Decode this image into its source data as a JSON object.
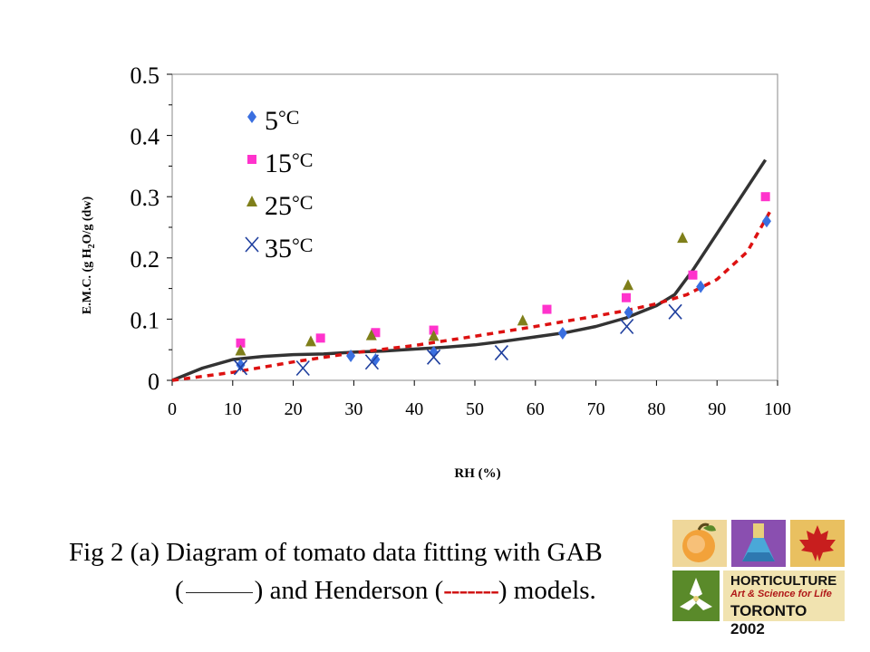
{
  "chart_data": {
    "type": "scatter",
    "title": "",
    "xlabel": "RH (%)",
    "ylabel": "E.M.C. (g H2O/g (dw)",
    "xlim": [
      0,
      100
    ],
    "ylim": [
      0,
      0.5
    ],
    "xticks": [
      "0",
      "10",
      "20",
      "30",
      "40",
      "50",
      "60",
      "70",
      "80",
      "90",
      "100"
    ],
    "yticks": [
      "0",
      "0.1",
      "0.2",
      "0.3",
      "0.4",
      "0.5"
    ],
    "legend_position": "top-left",
    "series": [
      {
        "name": "5°C",
        "marker": "diamond",
        "color": "#3a6fe0",
        "x": [
          11.3,
          29.5,
          33.6,
          43.2,
          64.5,
          75.4,
          87.3,
          98.2
        ],
        "y": [
          0.025,
          0.04,
          0.034,
          0.046,
          0.077,
          0.111,
          0.153,
          0.26
        ]
      },
      {
        "name": "15°C",
        "marker": "square",
        "color": "#ff33cc",
        "x": [
          11.3,
          24.5,
          33.6,
          43.2,
          61.9,
          75.0,
          86.0,
          98.0
        ],
        "y": [
          0.061,
          0.069,
          0.078,
          0.082,
          0.116,
          0.135,
          0.172,
          0.3
        ]
      },
      {
        "name": "25°C",
        "marker": "triangle",
        "color": "#7f7f1a",
        "x": [
          11.3,
          22.9,
          32.9,
          43.2,
          57.9,
          75.3,
          84.3
        ],
        "y": [
          0.048,
          0.063,
          0.073,
          0.072,
          0.097,
          0.155,
          0.232
        ]
      },
      {
        "name": "35°C",
        "marker": "x",
        "color": "#1f3f9e",
        "x": [
          11.3,
          21.6,
          33.0,
          43.2,
          54.4,
          75.1,
          83.1
        ],
        "y": [
          0.021,
          0.02,
          0.03,
          0.038,
          0.045,
          0.088,
          0.112
        ]
      }
    ],
    "curves": [
      {
        "model": "GAB",
        "style": "solid",
        "color": "#333333",
        "x": [
          0,
          5,
          10,
          15,
          20,
          25,
          30,
          35,
          40,
          45,
          50,
          55,
          60,
          65,
          70,
          75,
          80,
          83,
          86,
          90,
          94,
          98
        ],
        "y": [
          0,
          0.02,
          0.034,
          0.039,
          0.042,
          0.043,
          0.046,
          0.048,
          0.051,
          0.054,
          0.058,
          0.064,
          0.071,
          0.078,
          0.088,
          0.102,
          0.122,
          0.14,
          0.18,
          0.24,
          0.3,
          0.36
        ]
      },
      {
        "model": "Henderson",
        "style": "dashed",
        "color": "#dd1111",
        "x": [
          0,
          10,
          20,
          30,
          40,
          50,
          60,
          70,
          75,
          80,
          85,
          90,
          95,
          99
        ],
        "y": [
          0,
          0.013,
          0.03,
          0.045,
          0.057,
          0.072,
          0.088,
          0.105,
          0.114,
          0.125,
          0.14,
          0.165,
          0.21,
          0.28
        ]
      }
    ]
  },
  "caption": {
    "line1": "Fig 2 (a) Diagram of tomato data fitting with GAB",
    "line2_open": "(",
    "line2_mid": ") and Henderson (",
    "dashes": "-------",
    "line2_end": ") models."
  },
  "logo": {
    "line1": "HORTICULTURE",
    "line2": "Art & Science for Life",
    "line3": "TORONTO 2002",
    "colors": {
      "peach": "#e8a020",
      "purple": "#8a4fb0",
      "red": "#c81e1e",
      "green": "#5a8a2a",
      "banner": "#f1e3b0"
    }
  }
}
